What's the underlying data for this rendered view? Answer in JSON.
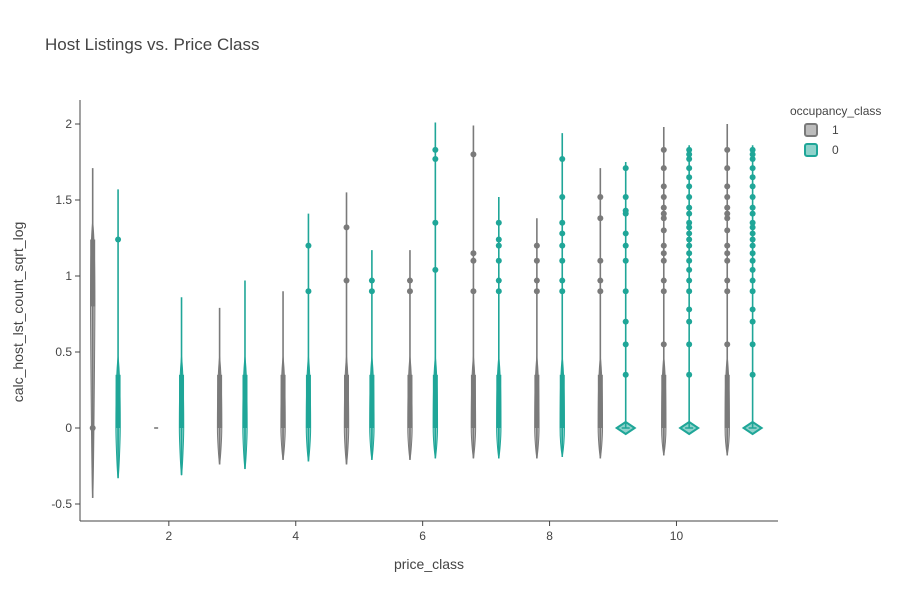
{
  "chart_data": {
    "type": "violin",
    "title": "Host Listings vs. Price Class",
    "xlabel": "price_class",
    "ylabel": "calc_host_lst_count_sqrt_log",
    "xlim": [
      0.6,
      11.6
    ],
    "ylim": [
      -0.55,
      2.1
    ],
    "x_ticks": [
      2,
      4,
      6,
      8,
      10
    ],
    "y_ticks": [
      -0.5,
      0,
      0.5,
      1,
      1.5,
      2
    ],
    "grid": false,
    "legend": {
      "title": "occupancy_class",
      "placement": "right"
    },
    "colors": {
      "1": "#7a7a7a",
      "0": "#1fa698"
    },
    "series": [
      {
        "name": "1",
        "color": "#7a7a7a",
        "violins": [
          {
            "x": 1,
            "min": -0.46,
            "max": 1.71,
            "q1": 0.8,
            "q3": 1.24,
            "median": 1.0,
            "outliers": [
              0
            ]
          },
          {
            "x": 2,
            "min": 0,
            "max": 0,
            "q1": 0,
            "q3": 0,
            "median": 0,
            "outliers": []
          },
          {
            "x": 3,
            "min": -0.24,
            "max": 0.79,
            "q1": 0,
            "q3": 0.35,
            "median": 0.1,
            "outliers": []
          },
          {
            "x": 4,
            "min": -0.21,
            "max": 0.9,
            "q1": 0,
            "q3": 0.35,
            "median": 0.1,
            "outliers": []
          },
          {
            "x": 5,
            "min": -0.24,
            "max": 1.55,
            "q1": 0,
            "q3": 0.35,
            "median": 0.1,
            "outliers": [
              0.97,
              1.32
            ]
          },
          {
            "x": 6,
            "min": -0.21,
            "max": 1.17,
            "q1": 0,
            "q3": 0.35,
            "median": 0.1,
            "outliers": [
              0.9,
              0.97
            ]
          },
          {
            "x": 7,
            "min": -0.2,
            "max": 1.99,
            "q1": 0,
            "q3": 0.35,
            "median": 0.1,
            "outliers": [
              0.9,
              1.1,
              1.15,
              1.8
            ]
          },
          {
            "x": 8,
            "min": -0.2,
            "max": 1.38,
            "q1": 0,
            "q3": 0.35,
            "median": 0.1,
            "outliers": [
              0.9,
              0.97,
              1.1,
              1.2
            ]
          },
          {
            "x": 9,
            "min": -0.2,
            "max": 1.71,
            "q1": 0,
            "q3": 0.35,
            "median": 0.1,
            "outliers": [
              0.9,
              0.97,
              1.1,
              1.38,
              1.52
            ]
          },
          {
            "x": 10,
            "min": -0.18,
            "max": 1.98,
            "q1": 0,
            "q3": 0.35,
            "median": 0.1,
            "outliers": [
              0.55,
              0.9,
              0.97,
              1.1,
              1.15,
              1.2,
              1.3,
              1.38,
              1.41,
              1.45,
              1.52,
              1.59,
              1.71,
              1.83
            ]
          },
          {
            "x": 11,
            "min": -0.18,
            "max": 2.0,
            "q1": 0,
            "q3": 0.35,
            "median": 0.1,
            "outliers": [
              0.55,
              0.9,
              0.97,
              1.1,
              1.15,
              1.2,
              1.3,
              1.38,
              1.41,
              1.45,
              1.52,
              1.59,
              1.71,
              1.83
            ]
          }
        ]
      },
      {
        "name": "0",
        "color": "#1fa698",
        "violins": [
          {
            "x": 1,
            "min": -0.33,
            "max": 1.57,
            "q1": 0,
            "q3": 0.35,
            "median": 0.1,
            "outliers": [
              1.24
            ]
          },
          {
            "x": 2,
            "min": -0.31,
            "max": 0.86,
            "q1": 0,
            "q3": 0.35,
            "median": 0.1,
            "outliers": []
          },
          {
            "x": 3,
            "min": -0.27,
            "max": 0.97,
            "q1": 0,
            "q3": 0.35,
            "median": 0.1,
            "outliers": []
          },
          {
            "x": 4,
            "min": -0.22,
            "max": 1.41,
            "q1": 0,
            "q3": 0.35,
            "median": 0.1,
            "outliers": [
              0.9,
              1.2
            ]
          },
          {
            "x": 5,
            "min": -0.21,
            "max": 1.17,
            "q1": 0,
            "q3": 0.35,
            "median": 0.1,
            "outliers": [
              0.9,
              0.97
            ]
          },
          {
            "x": 6,
            "min": -0.2,
            "max": 2.01,
            "q1": 0,
            "q3": 0.35,
            "median": 0.1,
            "outliers": [
              1.04,
              1.35,
              1.77,
              1.83
            ]
          },
          {
            "x": 7,
            "min": -0.2,
            "max": 1.52,
            "q1": 0,
            "q3": 0.35,
            "median": 0.1,
            "outliers": [
              0.9,
              0.97,
              1.1,
              1.2,
              1.24,
              1.35
            ]
          },
          {
            "x": 8,
            "min": -0.19,
            "max": 1.94,
            "q1": 0,
            "q3": 0.35,
            "median": 0.1,
            "outliers": [
              0.9,
              0.97,
              1.1,
              1.2,
              1.28,
              1.35,
              1.52,
              1.77
            ]
          },
          {
            "x": 9,
            "min": 0,
            "max": 1.75,
            "q1": 0,
            "q3": 0,
            "median": 0,
            "outliers": [
              0.35,
              0.55,
              0.7,
              0.9,
              1.1,
              1.2,
              1.28,
              1.41,
              1.43,
              1.52,
              1.71
            ]
          },
          {
            "x": 10,
            "min": 0,
            "max": 1.86,
            "q1": 0,
            "q3": 0,
            "median": 0,
            "outliers": [
              0.35,
              0.55,
              0.7,
              0.78,
              0.9,
              0.97,
              1.04,
              1.1,
              1.15,
              1.2,
              1.24,
              1.28,
              1.32,
              1.35,
              1.41,
              1.45,
              1.52,
              1.59,
              1.65,
              1.71,
              1.77,
              1.8,
              1.83
            ]
          },
          {
            "x": 11,
            "min": 0,
            "max": 1.86,
            "q1": 0,
            "q3": 0,
            "median": 0,
            "outliers": [
              0.35,
              0.55,
              0.7,
              0.78,
              0.9,
              0.97,
              1.04,
              1.1,
              1.15,
              1.2,
              1.24,
              1.28,
              1.32,
              1.35,
              1.41,
              1.45,
              1.52,
              1.59,
              1.65,
              1.71,
              1.77,
              1.8,
              1.83
            ]
          }
        ]
      }
    ]
  }
}
